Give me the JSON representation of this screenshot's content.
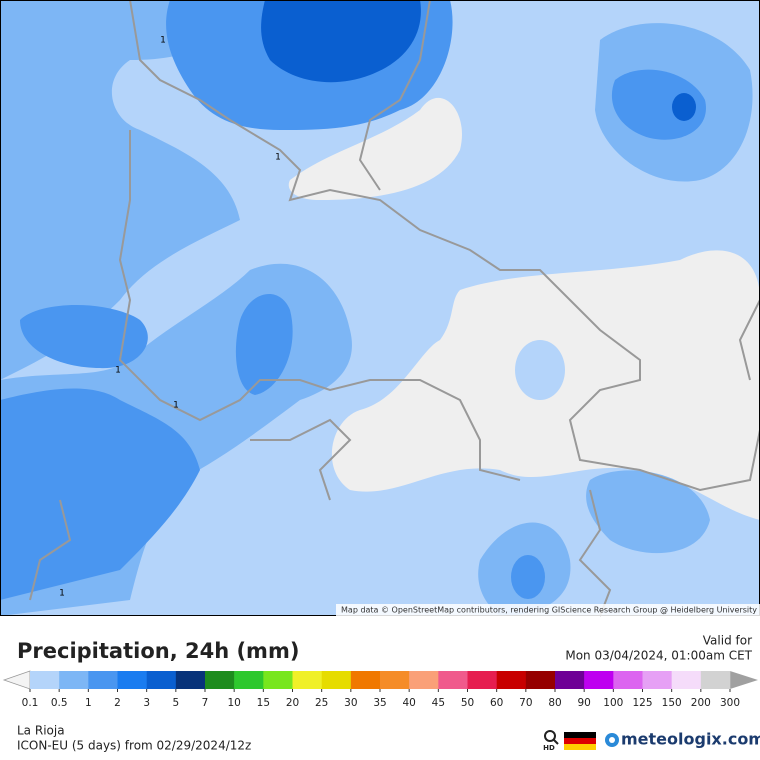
{
  "map": {
    "attribution": "Map data © OpenStreetMap contributors, rendering GIScience Research Group @ Heidelberg University",
    "contour_labels": [
      "1",
      "1",
      "1",
      "1",
      "1"
    ]
  },
  "footer": {
    "title": "Precipitation, 24h (mm)",
    "valid_label": "Valid for",
    "valid_time": "Mon 03/04/2024, 01:00am CET",
    "location": "La Rioja",
    "model": "ICON-EU (5 days) from 02/29/2024/12z",
    "hd_label": "HD",
    "brand": "meteologix.com"
  },
  "legend": {
    "labels": [
      "0.1",
      "0.5",
      "1",
      "2",
      "3",
      "5",
      "7",
      "10",
      "15",
      "20",
      "25",
      "30",
      "35",
      "40",
      "45",
      "50",
      "60",
      "70",
      "80",
      "90",
      "100",
      "125",
      "150",
      "200",
      "300"
    ],
    "colors": [
      "#b4d4fa",
      "#7db6f5",
      "#4a96f0",
      "#1a7cf0",
      "#0a5fd0",
      "#08337a",
      "#1e8c1e",
      "#2ec82e",
      "#78e61e",
      "#f0f028",
      "#e6dc00",
      "#f07800",
      "#f58c28",
      "#faa078",
      "#f05a8c",
      "#e61e50",
      "#c80000",
      "#960000",
      "#6e0096",
      "#be00f0",
      "#dc64f0",
      "#e6a0f5",
      "#f5dcfa",
      "#d2d2d2"
    ],
    "under_color": "#f4f4f4",
    "over_color": "#a0a0a0"
  }
}
